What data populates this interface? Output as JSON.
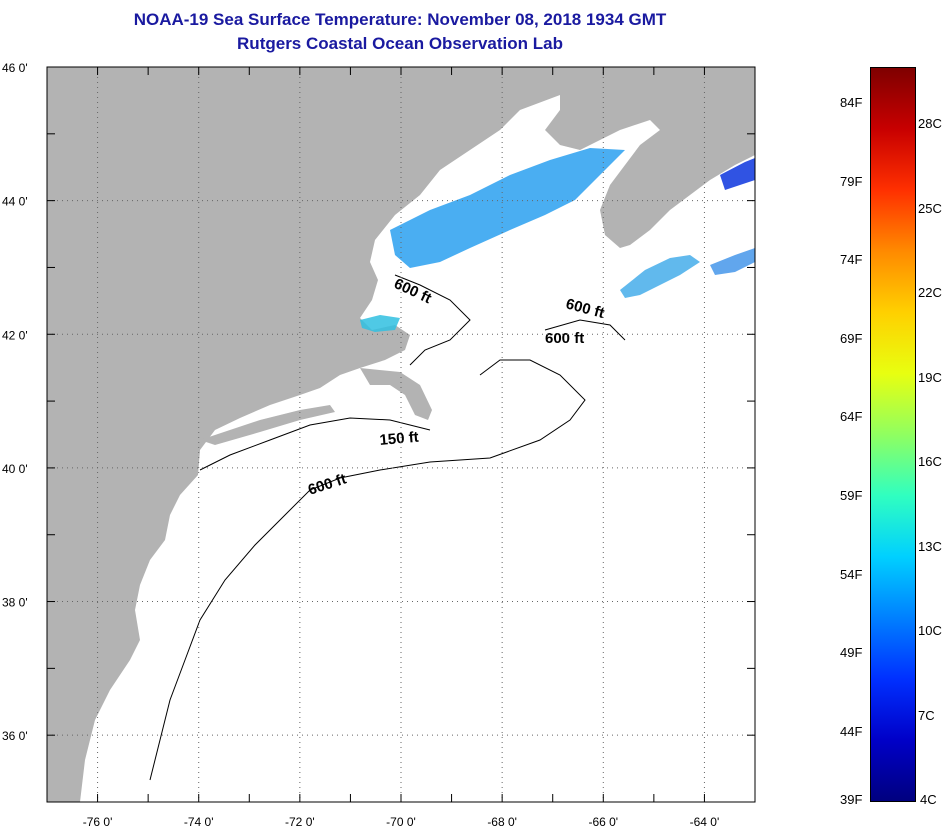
{
  "header": {
    "title": "NOAA-19 Sea Surface Temperature:  November 08, 2018 1934 GMT",
    "subtitle": "Rutgers Coastal Ocean Observation Lab"
  },
  "map": {
    "lat_range": [
      35,
      46
    ],
    "lon_range": [
      -77,
      -63
    ],
    "y_tick_labels": [
      "46 0'",
      "44 0'",
      "42 0'",
      "40 0'",
      "38 0'",
      "36 0'"
    ],
    "x_tick_labels": [
      "-76 0'",
      "-74 0'",
      "-72 0'",
      "-70 0'",
      "-68 0'",
      "-66 0'",
      "-64 0'"
    ],
    "contour_labels": [
      "600 ft",
      "600 ft",
      "600 ft",
      "150 ft",
      "600 ft"
    ],
    "land_color": "#b3b3b3",
    "water_color": "#ffffff",
    "sst_patch_color": "#2aa0f0"
  },
  "colorbar": {
    "fahrenheit_labels": [
      "84F",
      "79F",
      "74F",
      "69F",
      "64F",
      "59F",
      "54F",
      "49F",
      "44F",
      "39F"
    ],
    "celsius_labels": [
      "28C",
      "25C",
      "22C",
      "19C",
      "16C",
      "13C",
      "10C",
      "7C",
      "4C"
    ],
    "colors": [
      "#7f0000",
      "#c80000",
      "#ff3000",
      "#ff8a00",
      "#ffd000",
      "#e8ff10",
      "#90ff60",
      "#30ffc0",
      "#00d0ff",
      "#0080ff",
      "#0030ff",
      "#0000c8",
      "#00007f"
    ]
  }
}
